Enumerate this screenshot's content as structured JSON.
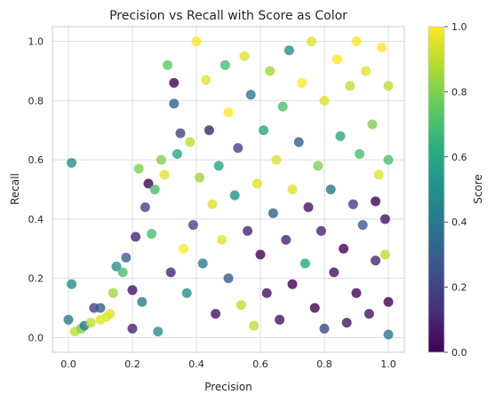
{
  "chart_data": {
    "type": "scatter",
    "title": "Precision vs Recall with Score as Color",
    "xlabel": "Precision",
    "ylabel": "Recall",
    "xlim": [
      -0.05,
      1.05
    ],
    "ylim": [
      -0.05,
      1.05
    ],
    "xticks": [
      0.0,
      0.2,
      0.4,
      0.6,
      0.8,
      1.0
    ],
    "xtick_labels": [
      "0.0",
      "0.2",
      "0.4",
      "0.6",
      "0.8",
      "1.0"
    ],
    "yticks": [
      0.0,
      0.2,
      0.4,
      0.6,
      0.8,
      1.0
    ],
    "ytick_labels": [
      "0.0",
      "0.2",
      "0.4",
      "0.6",
      "0.8",
      "1.0"
    ],
    "grid": true,
    "colormap": "viridis",
    "colorbar": {
      "label": "Score",
      "range": [
        0.0,
        1.0
      ],
      "ticks": [
        0.0,
        0.2,
        0.4,
        0.6,
        0.8,
        1.0
      ],
      "tick_labels": [
        "0.0",
        "0.2",
        "0.4",
        "0.6",
        "0.8",
        "1.0"
      ]
    },
    "marker_alpha": 0.8,
    "points": [
      [
        0.01,
        0.59,
        0.5
      ],
      [
        0.01,
        0.18,
        0.5
      ],
      [
        0.0,
        0.06,
        0.4
      ],
      [
        0.02,
        0.02,
        0.9
      ],
      [
        0.04,
        0.03,
        0.8
      ],
      [
        0.05,
        0.04,
        0.4
      ],
      [
        0.07,
        0.05,
        0.9
      ],
      [
        0.08,
        0.1,
        0.2
      ],
      [
        0.1,
        0.1,
        0.3
      ],
      [
        0.1,
        0.06,
        0.95
      ],
      [
        0.12,
        0.07,
        0.95
      ],
      [
        0.13,
        0.08,
        0.95
      ],
      [
        0.14,
        0.15,
        0.85
      ],
      [
        0.15,
        0.24,
        0.5
      ],
      [
        0.17,
        0.22,
        0.7
      ],
      [
        0.18,
        0.27,
        0.3
      ],
      [
        0.2,
        0.16,
        0.05
      ],
      [
        0.2,
        0.03,
        0.1
      ],
      [
        0.21,
        0.34,
        0.1
      ],
      [
        0.22,
        0.57,
        0.8
      ],
      [
        0.23,
        0.12,
        0.4
      ],
      [
        0.24,
        0.44,
        0.2
      ],
      [
        0.25,
        0.52,
        0.0
      ],
      [
        0.26,
        0.35,
        0.7
      ],
      [
        0.27,
        0.5,
        0.7
      ],
      [
        0.28,
        0.02,
        0.5
      ],
      [
        0.29,
        0.6,
        0.8
      ],
      [
        0.3,
        0.55,
        0.95
      ],
      [
        0.31,
        0.92,
        0.75
      ],
      [
        0.32,
        0.22,
        0.1
      ],
      [
        0.33,
        0.79,
        0.3
      ],
      [
        0.33,
        0.86,
        0.0
      ],
      [
        0.34,
        0.62,
        0.6
      ],
      [
        0.35,
        0.69,
        0.2
      ],
      [
        0.36,
        0.3,
        1.0
      ],
      [
        0.37,
        0.15,
        0.5
      ],
      [
        0.38,
        0.66,
        0.9
      ],
      [
        0.39,
        0.38,
        0.2
      ],
      [
        0.4,
        1.0,
        1.0
      ],
      [
        0.41,
        0.54,
        0.85
      ],
      [
        0.42,
        0.25,
        0.4
      ],
      [
        0.43,
        0.87,
        0.95
      ],
      [
        0.44,
        0.7,
        0.1
      ],
      [
        0.45,
        0.45,
        0.95
      ],
      [
        0.46,
        0.08,
        0.05
      ],
      [
        0.47,
        0.58,
        0.6
      ],
      [
        0.48,
        0.33,
        0.95
      ],
      [
        0.49,
        0.92,
        0.7
      ],
      [
        0.5,
        0.2,
        0.3
      ],
      [
        0.5,
        0.76,
        1.0
      ],
      [
        0.52,
        0.48,
        0.5
      ],
      [
        0.53,
        0.64,
        0.2
      ],
      [
        0.54,
        0.11,
        0.9
      ],
      [
        0.55,
        0.95,
        0.95
      ],
      [
        0.56,
        0.36,
        0.1
      ],
      [
        0.57,
        0.82,
        0.4
      ],
      [
        0.58,
        0.04,
        0.9
      ],
      [
        0.59,
        0.52,
        0.95
      ],
      [
        0.6,
        0.28,
        0.0
      ],
      [
        0.61,
        0.7,
        0.6
      ],
      [
        0.62,
        0.15,
        0.05
      ],
      [
        0.63,
        0.9,
        0.85
      ],
      [
        0.64,
        0.42,
        0.3
      ],
      [
        0.65,
        0.6,
        0.95
      ],
      [
        0.66,
        0.06,
        0.05
      ],
      [
        0.67,
        0.78,
        0.7
      ],
      [
        0.68,
        0.33,
        0.1
      ],
      [
        0.69,
        0.97,
        0.5
      ],
      [
        0.7,
        0.5,
        0.95
      ],
      [
        0.7,
        0.18,
        0.0
      ],
      [
        0.72,
        0.66,
        0.3
      ],
      [
        0.73,
        0.86,
        1.0
      ],
      [
        0.74,
        0.25,
        0.6
      ],
      [
        0.75,
        0.44,
        0.05
      ],
      [
        0.76,
        1.0,
        0.95
      ],
      [
        0.77,
        0.1,
        0.0
      ],
      [
        0.78,
        0.58,
        0.8
      ],
      [
        0.79,
        0.36,
        0.1
      ],
      [
        0.8,
        0.8,
        0.95
      ],
      [
        0.8,
        0.03,
        0.2
      ],
      [
        0.82,
        0.5,
        0.4
      ],
      [
        0.83,
        0.22,
        0.05
      ],
      [
        0.84,
        0.94,
        1.0
      ],
      [
        0.85,
        0.68,
        0.6
      ],
      [
        0.86,
        0.3,
        0.0
      ],
      [
        0.87,
        0.05,
        0.05
      ],
      [
        0.88,
        0.85,
        0.9
      ],
      [
        0.89,
        0.45,
        0.2
      ],
      [
        0.9,
        1.0,
        1.0
      ],
      [
        0.9,
        0.15,
        0.0
      ],
      [
        0.91,
        0.62,
        0.7
      ],
      [
        0.92,
        0.38,
        0.3
      ],
      [
        0.93,
        0.9,
        0.95
      ],
      [
        0.94,
        0.08,
        0.05
      ],
      [
        0.95,
        0.72,
        0.8
      ],
      [
        0.96,
        0.26,
        0.1
      ],
      [
        0.97,
        0.55,
        0.95
      ],
      [
        0.98,
        0.98,
        1.0
      ],
      [
        0.99,
        0.4,
        0.05
      ],
      [
        1.0,
        0.85,
        0.9
      ],
      [
        1.0,
        0.12,
        0.0
      ],
      [
        1.0,
        0.6,
        0.7
      ],
      [
        1.0,
        0.01,
        0.4
      ],
      [
        0.99,
        0.28,
        0.9
      ],
      [
        0.96,
        0.46,
        0.0
      ]
    ]
  }
}
